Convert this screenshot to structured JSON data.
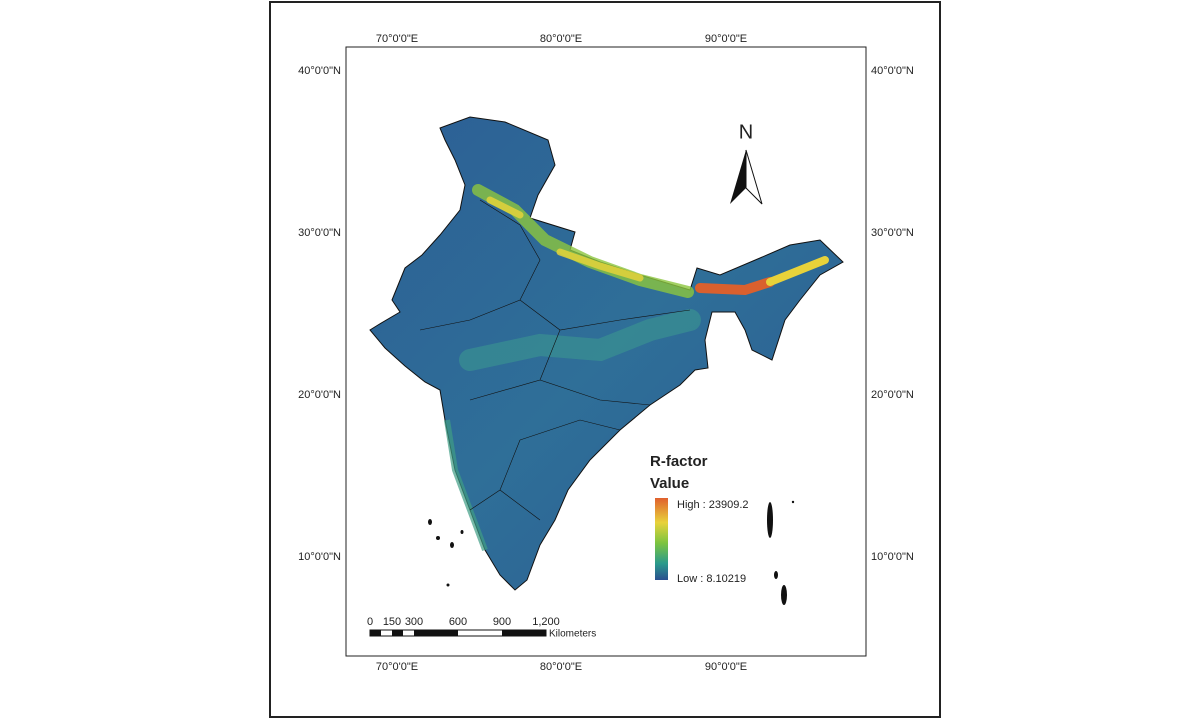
{
  "map": {
    "graticule": {
      "longitudes": [
        "70°0'0\"E",
        "80°0'0\"E",
        "90°0'0\"E"
      ],
      "latitudes": [
        "40°0'0\"N",
        "30°0'0\"N",
        "20°0'0\"N",
        "10°0'0\"N"
      ]
    },
    "north_arrow": "N",
    "legend": {
      "title": "R-factor",
      "subtitle": "Value",
      "high": "High : 23909.2",
      "low": "Low : 8.10219"
    },
    "scale_bar": {
      "labels": [
        "0",
        "150",
        "300",
        "600",
        "900",
        "1,200"
      ],
      "unit": "Kilometers"
    }
  }
}
